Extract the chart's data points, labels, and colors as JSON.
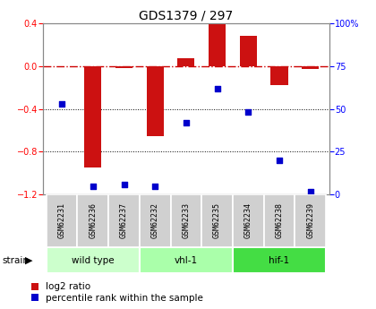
{
  "title": "GDS1379 / 297",
  "samples": [
    "GSM62231",
    "GSM62236",
    "GSM62237",
    "GSM62232",
    "GSM62233",
    "GSM62235",
    "GSM62234",
    "GSM62238",
    "GSM62239"
  ],
  "log2_ratio": [
    0.0,
    -0.95,
    -0.02,
    -0.65,
    0.07,
    0.39,
    0.28,
    -0.18,
    -0.03
  ],
  "percentile_rank": [
    53,
    5,
    6,
    5,
    42,
    62,
    48,
    20,
    2
  ],
  "groups": [
    {
      "label": "wild type",
      "start": 0,
      "end": 3,
      "color": "#ccffcc"
    },
    {
      "label": "vhl-1",
      "start": 3,
      "end": 6,
      "color": "#aaffaa"
    },
    {
      "label": "hif-1",
      "start": 6,
      "end": 9,
      "color": "#44dd44"
    }
  ],
  "ylim_left": [
    -1.2,
    0.4
  ],
  "ylim_right": [
    0,
    100
  ],
  "yticks_left": [
    -1.2,
    -0.8,
    -0.4,
    0.0,
    0.4
  ],
  "yticks_right": [
    0,
    25,
    50,
    75,
    100
  ],
  "bar_color": "#cc1111",
  "dot_color": "#0000cc",
  "bar_width": 0.55,
  "plot_bg": "#ffffff",
  "grid_color": "#000000",
  "zero_line_color": "#cc0000",
  "sample_box_color": "#d0d0d0",
  "title_fontsize": 10,
  "tick_fontsize": 7,
  "label_fontsize": 7
}
